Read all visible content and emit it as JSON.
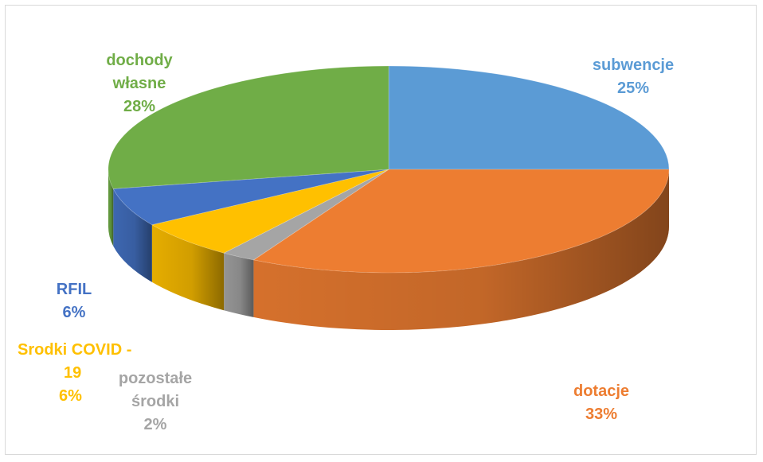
{
  "chart_data": {
    "type": "pie",
    "title": "",
    "slices": [
      {
        "label_lines": [
          "subwencje"
        ],
        "value": 25,
        "value_label": "25%",
        "color": "#5b9bd5"
      },
      {
        "label_lines": [
          "dotacje"
        ],
        "value": 33,
        "value_label": "33%",
        "color": "#ed7d31"
      },
      {
        "label_lines": [
          "pozostałe",
          "środki"
        ],
        "value": 2,
        "value_label": "2%",
        "color": "#a5a5a5"
      },
      {
        "label_lines": [
          "Srodki COVID -",
          "19"
        ],
        "value": 6,
        "value_label": "6%",
        "color": "#ffc000"
      },
      {
        "label_lines": [
          "RFIL"
        ],
        "value": 6,
        "value_label": "6%",
        "color": "#4472c4"
      },
      {
        "label_lines": [
          "dochody",
          "własne"
        ],
        "value": 28,
        "value_label": "28%",
        "color": "#70ad47"
      }
    ]
  }
}
